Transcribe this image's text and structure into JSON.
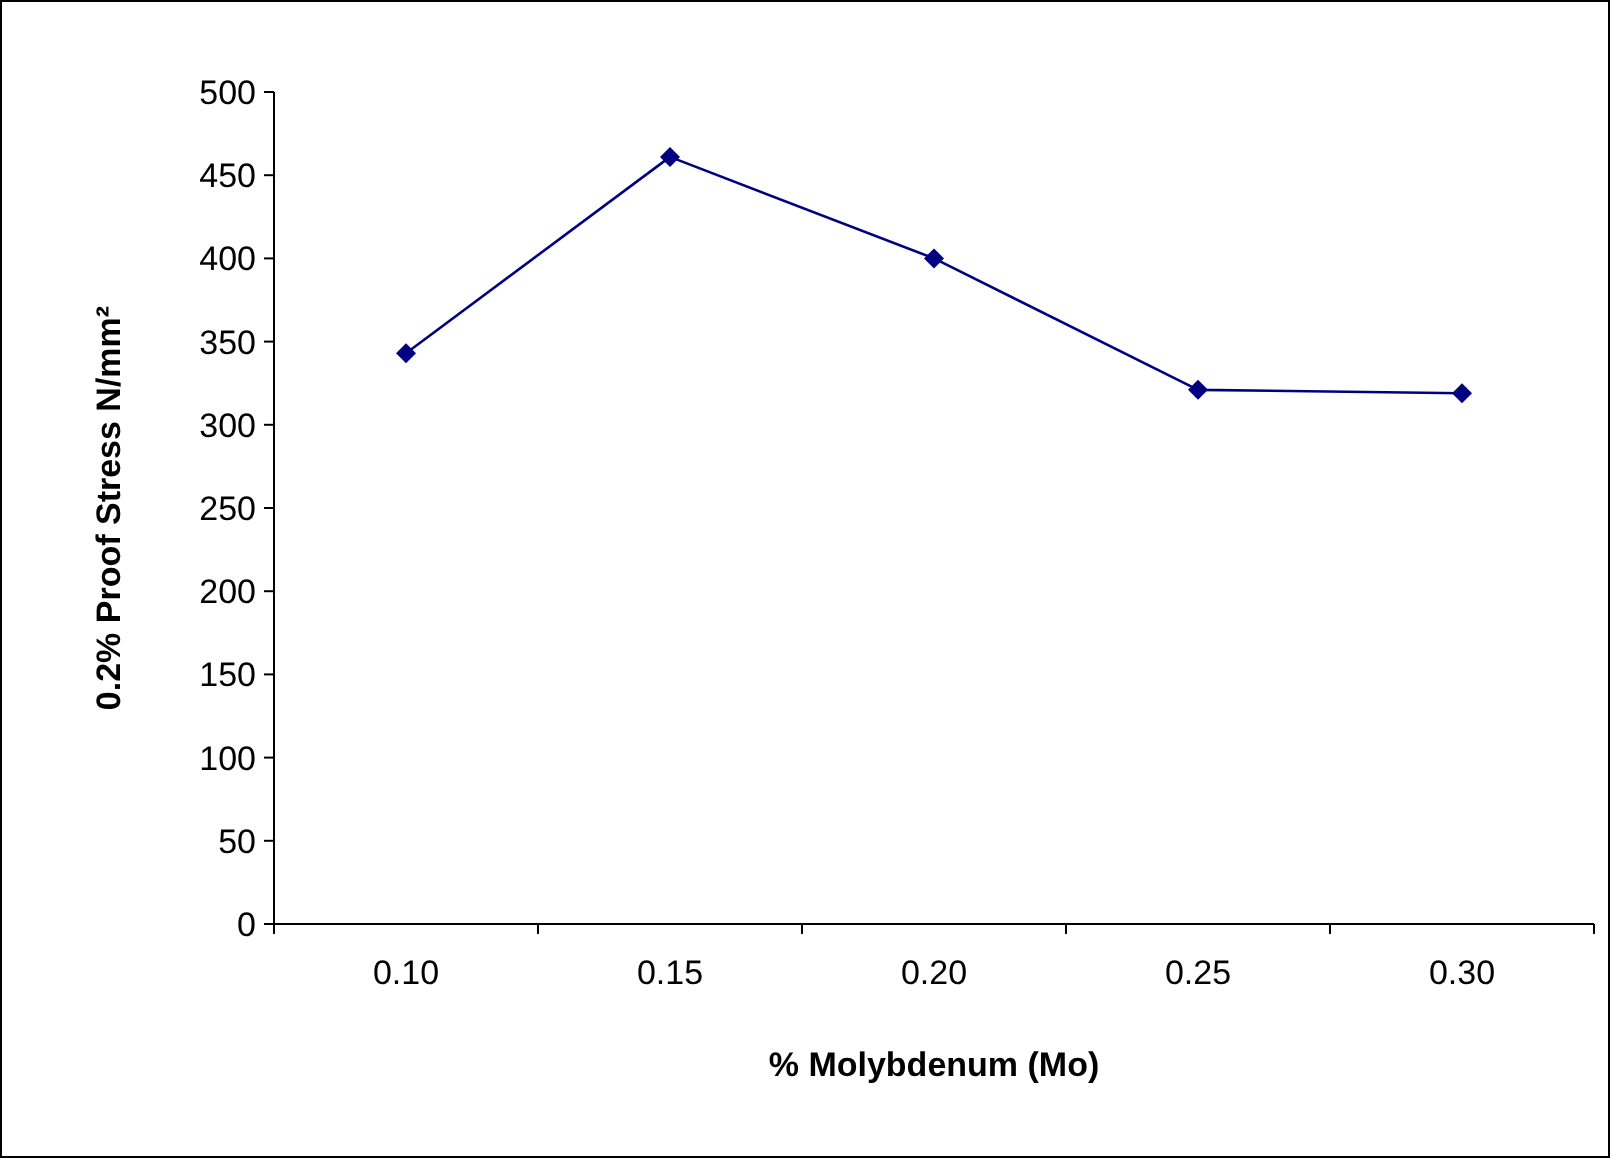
{
  "chart_data": {
    "type": "line",
    "xlabel": "% Molybdenum (Mo)",
    "ylabel": "0.2% Proof Stress N/mm²",
    "categories": [
      "0.10",
      "0.15",
      "0.20",
      "0.25",
      "0.30"
    ],
    "series": [
      {
        "color": "#000080",
        "values": [
          343,
          461,
          400,
          321,
          319
        ]
      }
    ],
    "ylim": [
      0,
      500
    ],
    "yticks": [
      0,
      50,
      100,
      150,
      200,
      250,
      300,
      350,
      400,
      450,
      500
    ],
    "marker": "diamond"
  }
}
